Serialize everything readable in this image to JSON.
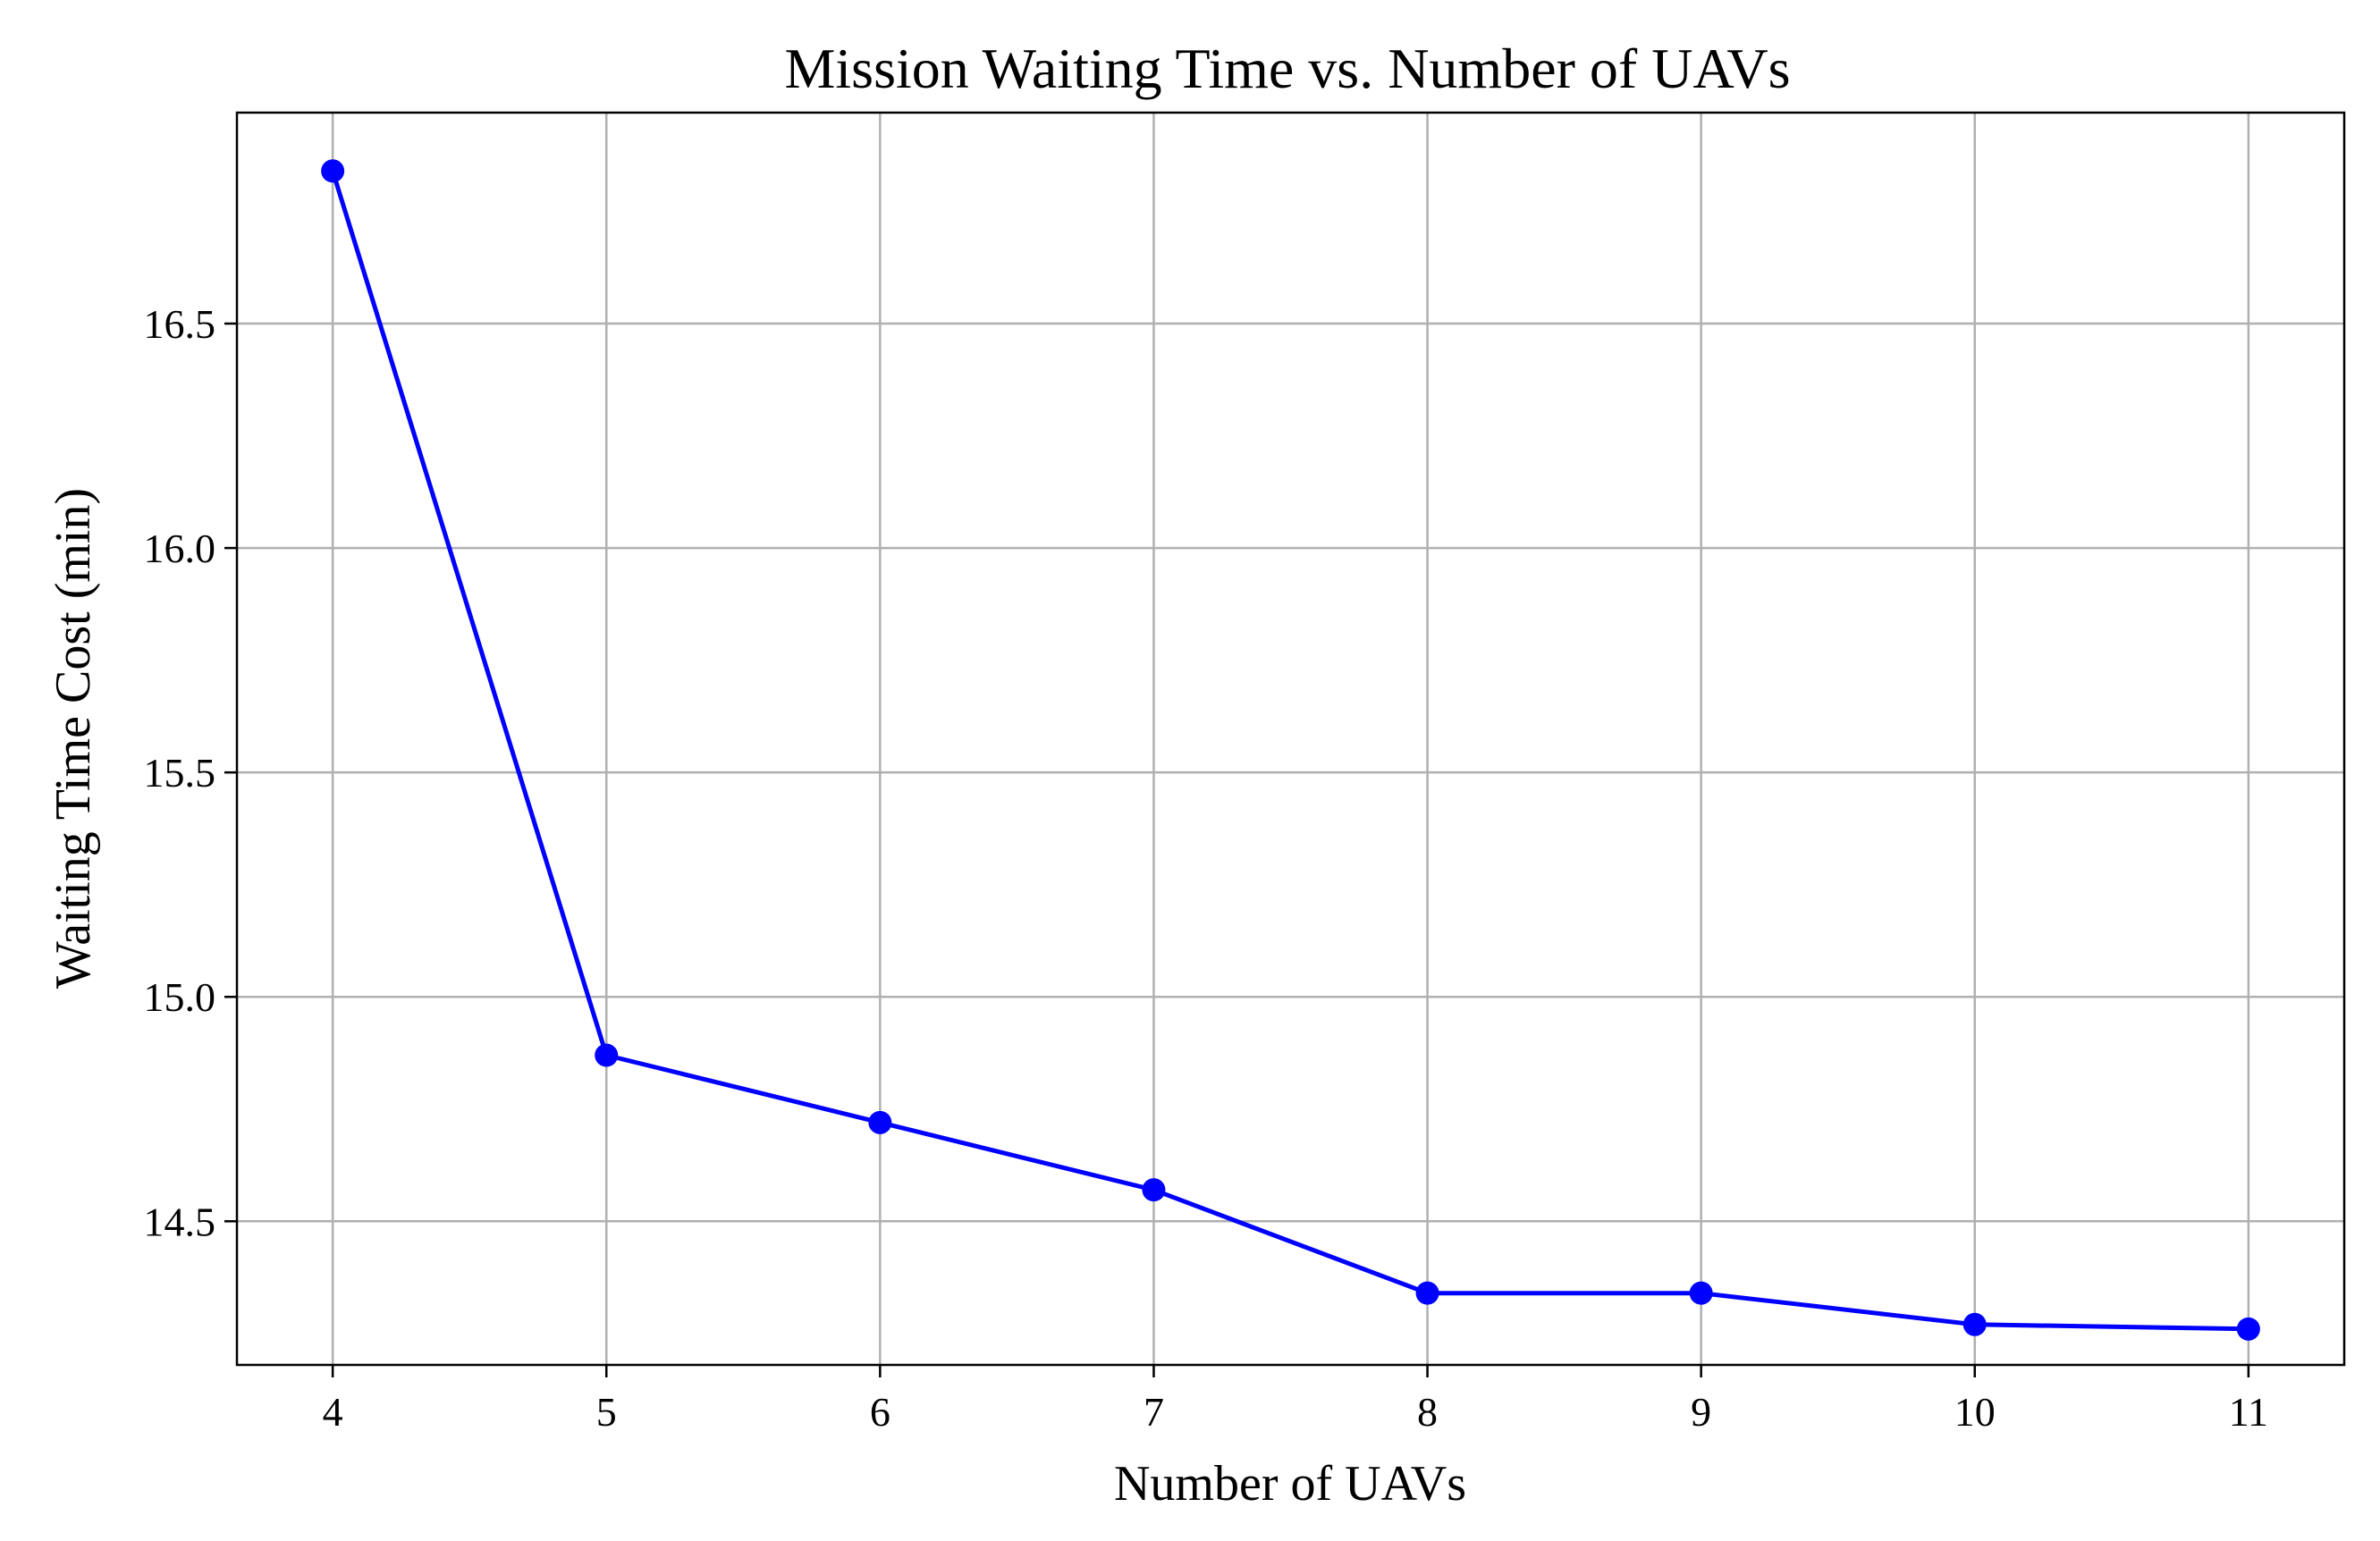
{
  "chart_data": {
    "type": "line",
    "title": "Mission Waiting Time vs. Number of UAVs",
    "xlabel": "Number of UAVs",
    "ylabel": "Waiting Time Cost (min)",
    "x": [
      4,
      5,
      6,
      7,
      8,
      9,
      10,
      11
    ],
    "xticks": [
      "4",
      "5",
      "6",
      "7",
      "8",
      "9",
      "10",
      "11"
    ],
    "yticks": [
      "14.5",
      "15.0",
      "15.5",
      "16.0",
      "16.5"
    ],
    "xlim": [
      3.65,
      11.35
    ],
    "ylim": [
      14.18,
      16.97
    ],
    "grid": true,
    "series": [
      {
        "values": [
          16.84,
          14.87,
          14.72,
          14.57,
          14.34,
          14.34,
          14.27,
          14.26
        ],
        "color": "#0000ff",
        "marker": "circle"
      }
    ]
  }
}
